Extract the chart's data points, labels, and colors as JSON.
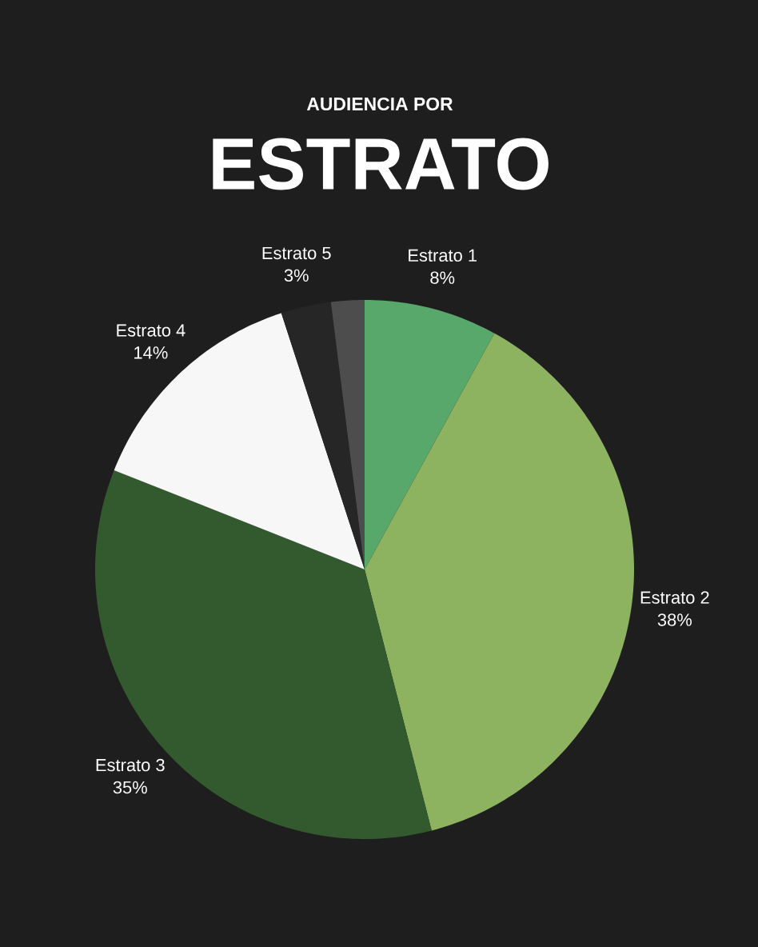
{
  "chart_data": {
    "type": "pie",
    "title": "AUDIENCIA POR",
    "subtitle": "ESTRATO",
    "categories": [
      "Estrato 1",
      "Estrato 2",
      "Estrato 3",
      "Estrato 4",
      "Estrato 5",
      null
    ],
    "values": [
      8,
      38,
      35,
      14,
      3,
      2
    ],
    "value_labels": [
      "8%",
      "38%",
      "35%",
      "14%",
      "3%",
      null
    ],
    "colors": [
      "#58a86b",
      "#8db360",
      "#335a2e",
      "#f7f7f7",
      "#262626",
      "#4d4d4d"
    ]
  }
}
